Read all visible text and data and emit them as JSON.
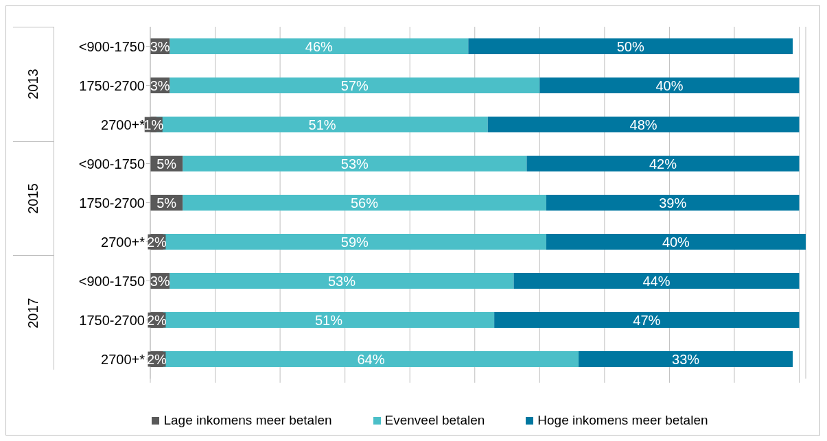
{
  "chart_data": {
    "type": "bar",
    "orientation": "horizontal",
    "stacked": true,
    "categories": [
      "<900-1750",
      "1750-2700",
      "2700+*",
      "<900-1750",
      "1750-2700",
      "2700+*",
      "<900-1750",
      "1750-2700",
      "2700+*"
    ],
    "annotations": [
      "2013",
      "2015",
      "2017"
    ],
    "series": [
      {
        "name": "Lage inkomens meer betalen",
        "color": "#595959",
        "values": [
          3,
          3,
          1,
          5,
          5,
          2,
          3,
          2,
          2
        ],
        "value_labels": [
          "3%",
          "3%",
          "1%",
          "5%",
          "5%",
          "2%",
          "3%",
          "2%",
          "2%"
        ]
      },
      {
        "name": "Evenveel betalen",
        "color": "#4bbfc8",
        "values": [
          46,
          57,
          51,
          53,
          56,
          59,
          53,
          51,
          64
        ],
        "value_labels": [
          "46%",
          "57%",
          "51%",
          "53%",
          "56%",
          "59%",
          "53%",
          "51%",
          "64%"
        ]
      },
      {
        "name": "Hoge inkomens meer betalen",
        "color": "#0077a0",
        "values": [
          50,
          40,
          48,
          42,
          39,
          40,
          44,
          47,
          33
        ],
        "value_labels": [
          "50%",
          "40%",
          "48%",
          "42%",
          "39%",
          "40%",
          "44%",
          "47%",
          "33%"
        ]
      }
    ],
    "xlim": [
      0,
      101
    ],
    "xticks": [
      {
        "value": 0,
        "label": null
      },
      {
        "value": 10,
        "label": null
      },
      {
        "value": 20,
        "label": null
      },
      {
        "value": 30,
        "label": null
      },
      {
        "value": 40,
        "label": null
      },
      {
        "value": 50,
        "label": null
      },
      {
        "value": 60,
        "label": null
      },
      {
        "value": 70,
        "label": null
      },
      {
        "value": 80,
        "label": null
      },
      {
        "value": 90,
        "label": null
      },
      {
        "value": 100,
        "label": null
      }
    ],
    "grid": "x",
    "legend": "bottom"
  }
}
